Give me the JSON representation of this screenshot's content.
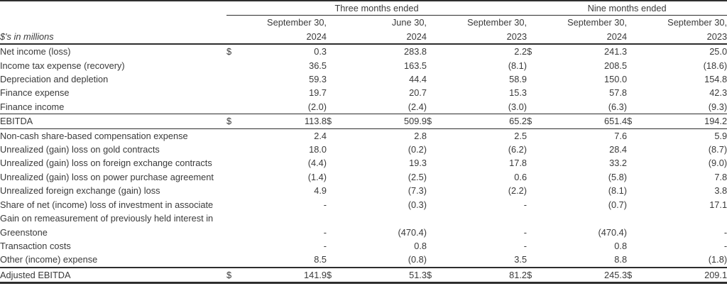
{
  "table": {
    "units_label": "$'s in millions",
    "dollar_sign": "$",
    "column_groups": [
      {
        "label": "Three months ended",
        "span": 3
      },
      {
        "label": "Nine months ended",
        "span": 2
      }
    ],
    "columns": [
      {
        "line1": "September 30,",
        "line2": "2024"
      },
      {
        "line1": "June 30,",
        "line2": "2024"
      },
      {
        "line1": "September 30,",
        "line2": "2023"
      },
      {
        "line1": "September 30,",
        "line2": "2024"
      },
      {
        "line1": "September 30,",
        "line2": "2023"
      }
    ],
    "rows": [
      {
        "label": "Net income (loss)",
        "style": "normal",
        "dollar": [
          true,
          false,
          false,
          true,
          false
        ],
        "values": [
          "0.3",
          "283.8",
          "2.2",
          "241.3",
          "25.0"
        ]
      },
      {
        "label": "Income tax expense (recovery)",
        "style": "normal",
        "dollar": [
          false,
          false,
          false,
          false,
          false
        ],
        "values": [
          "36.5",
          "163.5",
          "(8.1)",
          "208.5",
          "(18.6)"
        ]
      },
      {
        "label": "Depreciation and depletion",
        "style": "normal",
        "dollar": [
          false,
          false,
          false,
          false,
          false
        ],
        "values": [
          "59.3",
          "44.4",
          "58.9",
          "150.0",
          "154.8"
        ]
      },
      {
        "label": "Finance expense",
        "style": "normal",
        "dollar": [
          false,
          false,
          false,
          false,
          false
        ],
        "values": [
          "19.7",
          "20.7",
          "15.3",
          "57.8",
          "42.3"
        ]
      },
      {
        "label": "Finance income",
        "style": "normal",
        "dollar": [
          false,
          false,
          false,
          false,
          false
        ],
        "values": [
          "(2.0)",
          "(2.4)",
          "(3.0)",
          "(6.3)",
          "(9.3)"
        ]
      },
      {
        "label": "EBITDA",
        "style": "subtotal",
        "dollar": [
          true,
          true,
          true,
          true,
          true
        ],
        "values": [
          "113.8",
          "509.9",
          "65.2",
          "651.4",
          "194.2"
        ]
      },
      {
        "label": "Non-cash share-based compensation expense",
        "style": "normal",
        "dollar": [
          false,
          false,
          false,
          false,
          false
        ],
        "values": [
          "2.4",
          "2.8",
          "2.5",
          "7.6",
          "5.9"
        ]
      },
      {
        "label": "Unrealized (gain) loss on gold contracts",
        "style": "normal",
        "dollar": [
          false,
          false,
          false,
          false,
          false
        ],
        "values": [
          "18.0",
          "(0.2)",
          "(6.2)",
          "28.4",
          "(8.7)"
        ]
      },
      {
        "label": "Unrealized (gain) loss on foreign exchange contracts",
        "style": "normal",
        "dollar": [
          false,
          false,
          false,
          false,
          false
        ],
        "values": [
          "(4.4)",
          "19.3",
          "17.8",
          "33.2",
          "(9.0)"
        ]
      },
      {
        "label": "Unrealized (gain) loss on power purchase agreement",
        "style": "normal",
        "dollar": [
          false,
          false,
          false,
          false,
          false
        ],
        "values": [
          "(1.4)",
          "(2.5)",
          "0.6",
          "(5.8)",
          "7.8"
        ]
      },
      {
        "label": "Unrealized foreign exchange (gain) loss",
        "style": "normal",
        "dollar": [
          false,
          false,
          false,
          false,
          false
        ],
        "values": [
          "4.9",
          "(7.3)",
          "(2.2)",
          "(8.1)",
          "3.8"
        ]
      },
      {
        "label": "Share of net (income) loss of investment in associate",
        "style": "normal",
        "dollar": [
          false,
          false,
          false,
          false,
          false
        ],
        "values": [
          "-",
          "(0.3)",
          "-",
          "(0.7)",
          "17.1"
        ]
      },
      {
        "label": "Gain on remeasurement of previously held interest in",
        "style": "normal",
        "dollar": [
          false,
          false,
          false,
          false,
          false
        ],
        "values": [
          "",
          "",
          "",
          "",
          ""
        ]
      },
      {
        "label": "Greenstone",
        "style": "normal",
        "dollar": [
          false,
          false,
          false,
          false,
          false
        ],
        "values": [
          "-",
          "(470.4)",
          "-",
          "(470.4)",
          "-"
        ]
      },
      {
        "label": "Transaction costs",
        "style": "normal",
        "dollar": [
          false,
          false,
          false,
          false,
          false
        ],
        "values": [
          "-",
          "0.8",
          "-",
          "0.8",
          "-"
        ]
      },
      {
        "label": "Other (income) expense",
        "style": "normal",
        "dollar": [
          false,
          false,
          false,
          false,
          false
        ],
        "values": [
          "8.5",
          "(0.8)",
          "3.5",
          "8.8",
          "(1.8)"
        ]
      },
      {
        "label": "Adjusted EBITDA",
        "style": "total",
        "dollar": [
          true,
          true,
          true,
          true,
          true
        ],
        "values": [
          "141.9",
          "51.3",
          "81.2",
          "245.3",
          "209.1"
        ]
      }
    ]
  },
  "colors": {
    "text": "#3a3a3a",
    "rule_line": "#2e2e2e",
    "background": "#ffffff"
  }
}
